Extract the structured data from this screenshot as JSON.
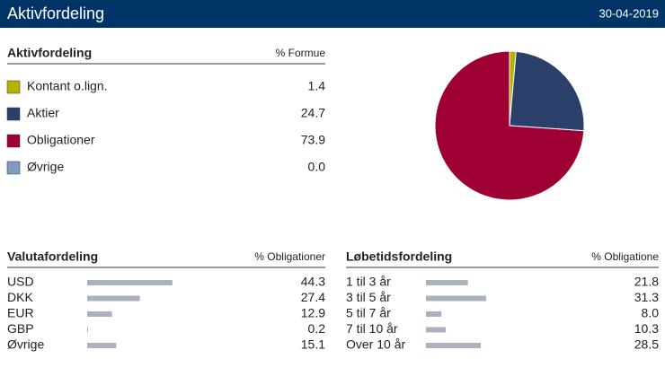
{
  "header": {
    "title": "Aktivfordeling",
    "date": "30-04-2019"
  },
  "chart_data": [
    {
      "type": "pie",
      "title": "Aktivfordeling",
      "value_header": "% Formue",
      "categories": [
        "Kontant o.lign.",
        "Aktier",
        "Obligationer",
        "Øvrige"
      ],
      "values": [
        1.4,
        24.7,
        73.9,
        0.0
      ],
      "value_labels": [
        "1.4",
        "24.7",
        "73.9",
        "0.0"
      ],
      "colors": [
        "#b5b300",
        "#2b3f6b",
        "#9e0033",
        "#7f9cc0"
      ]
    },
    {
      "type": "bar",
      "title": "Valutafordeling",
      "value_header": "% Obligationer",
      "categories": [
        "USD",
        "DKK",
        "EUR",
        "GBP",
        "Øvrige"
      ],
      "values": [
        44.3,
        27.4,
        12.9,
        0.2,
        15.1
      ],
      "value_labels": [
        "44.3",
        "27.4",
        "12.9",
        "0.2",
        "15.1"
      ],
      "color": "#aab2bd"
    },
    {
      "type": "bar",
      "title": "Løbetidsfordeling",
      "value_header": "% Obligatione",
      "categories": [
        "1 til 3 år",
        "3 til 5 år",
        "5 til 7 år",
        "7 til 10 år",
        "Over 10 år"
      ],
      "values": [
        21.8,
        31.3,
        8.0,
        10.3,
        28.5
      ],
      "value_labels": [
        "21.8",
        "31.3",
        "8.0",
        "10.3",
        "28.5"
      ],
      "color": "#aab2bd"
    }
  ]
}
